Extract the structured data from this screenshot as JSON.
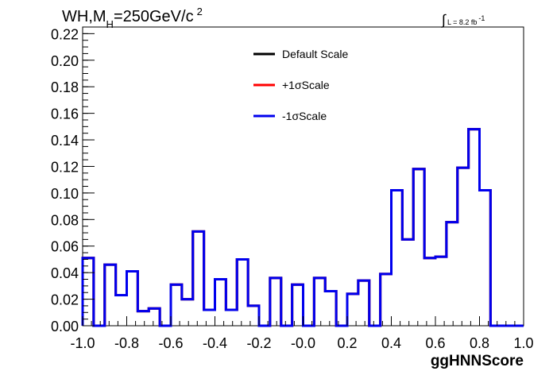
{
  "chart_data": {
    "type": "histogram",
    "title": {
      "text_a": "WH,M",
      "sub": "H",
      "text_b": "=250GeV/c",
      "sup": "2"
    },
    "lumi": {
      "symbol": "∫",
      "text": "L = 8.2 fb",
      "sup": "-1"
    },
    "xlabel": "ggHNNScore",
    "ylabel": "",
    "xlim": [
      -1.0,
      1.0
    ],
    "ylim": [
      0,
      0.225
    ],
    "grid": false,
    "x_ticks": [
      "-1.0",
      "-0.8",
      "-0.6",
      "-0.4",
      "-0.2",
      "-0.0",
      "0.2",
      "0.4",
      "0.6",
      "0.8",
      "1.0"
    ],
    "x_tick_values": [
      -1.0,
      -0.8,
      -0.6,
      -0.4,
      -0.2,
      0.0,
      0.2,
      0.4,
      0.6,
      0.8,
      1.0
    ],
    "y_ticks": [
      "0.00",
      "0.02",
      "0.04",
      "0.06",
      "0.08",
      "0.10",
      "0.12",
      "0.14",
      "0.16",
      "0.18",
      "0.20",
      "0.22"
    ],
    "y_tick_values": [
      0.0,
      0.02,
      0.04,
      0.06,
      0.08,
      0.1,
      0.12,
      0.14,
      0.16,
      0.18,
      0.2,
      0.22
    ],
    "bin_edges_start": -1.0,
    "bin_width": 0.05,
    "legend_position": "top-center",
    "series": [
      {
        "name": "Default Scale",
        "color": "#000000",
        "values": [
          0.051,
          0.0,
          0.046,
          0.023,
          0.041,
          0.011,
          0.013,
          0.0,
          0.031,
          0.02,
          0.071,
          0.012,
          0.035,
          0.012,
          0.05,
          0.015,
          0.0,
          0.036,
          0.0,
          0.031,
          0.0,
          0.036,
          0.026,
          0.0,
          0.024,
          0.034,
          0.0,
          0.039,
          0.102,
          0.065,
          0.118,
          0.051,
          0.052,
          0.078,
          0.119,
          0.148,
          0.102,
          0.0,
          0.0,
          0.0
        ]
      },
      {
        "name": "+1σScale",
        "color": "#ff0000",
        "values": [
          0.051,
          0.0,
          0.046,
          0.023,
          0.041,
          0.011,
          0.013,
          0.0,
          0.031,
          0.02,
          0.071,
          0.012,
          0.035,
          0.012,
          0.05,
          0.015,
          0.0,
          0.036,
          0.0,
          0.031,
          0.0,
          0.036,
          0.026,
          0.0,
          0.024,
          0.034,
          0.0,
          0.039,
          0.102,
          0.065,
          0.118,
          0.051,
          0.052,
          0.078,
          0.119,
          0.148,
          0.102,
          0.0,
          0.0,
          0.0
        ]
      },
      {
        "name": "-1σScale",
        "color": "#0000ee",
        "values": [
          0.051,
          0.0,
          0.046,
          0.023,
          0.041,
          0.011,
          0.013,
          0.0,
          0.031,
          0.02,
          0.071,
          0.012,
          0.035,
          0.012,
          0.05,
          0.015,
          0.0,
          0.036,
          0.0,
          0.031,
          0.0,
          0.036,
          0.026,
          0.0,
          0.024,
          0.034,
          0.0,
          0.039,
          0.102,
          0.065,
          0.118,
          0.051,
          0.052,
          0.078,
          0.119,
          0.148,
          0.102,
          0.0,
          0.0,
          0.0
        ]
      }
    ]
  }
}
